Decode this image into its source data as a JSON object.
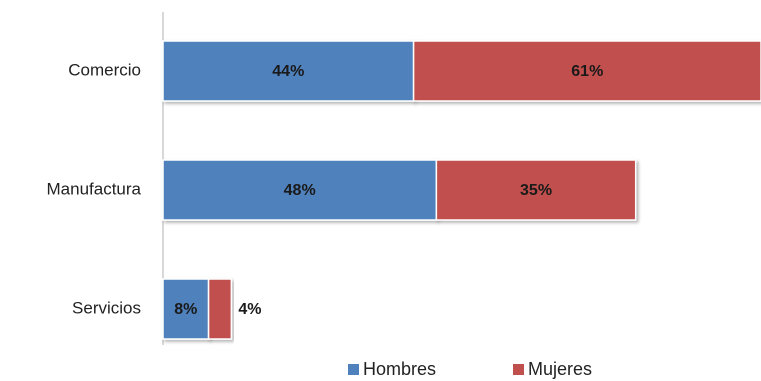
{
  "chart_data": {
    "type": "bar",
    "orientation": "horizontal",
    "stacked": true,
    "categories": [
      "Comercio",
      "Manufactura",
      "Servicios"
    ],
    "series": [
      {
        "name": "Hombres",
        "values": [
          44,
          48,
          8
        ],
        "labels": [
          "44%",
          "48%",
          "8%"
        ],
        "color": "#4f81bd"
      },
      {
        "name": "Mujeres",
        "values": [
          61,
          35,
          4
        ],
        "labels": [
          "61%",
          "35%",
          "4%"
        ],
        "color": "#c0504d"
      }
    ],
    "xlim": [
      0,
      105
    ],
    "grid": false,
    "legend_position": "bottom"
  }
}
